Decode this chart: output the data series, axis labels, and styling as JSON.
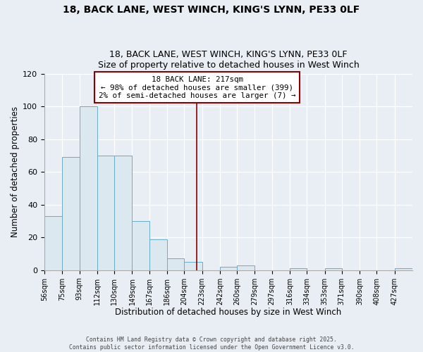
{
  "title1": "18, BACK LANE, WEST WINCH, KING'S LYNN, PE33 0LF",
  "title2": "Size of property relative to detached houses in West Winch",
  "xlabel": "Distribution of detached houses by size in West Winch",
  "ylabel": "Number of detached properties",
  "bar_color": "#dce8f0",
  "bar_edge_color": "#6aabcc",
  "bin_labels": [
    "56sqm",
    "75sqm",
    "93sqm",
    "112sqm",
    "130sqm",
    "149sqm",
    "167sqm",
    "186sqm",
    "204sqm",
    "223sqm",
    "242sqm",
    "260sqm",
    "279sqm",
    "297sqm",
    "316sqm",
    "334sqm",
    "353sqm",
    "371sqm",
    "390sqm",
    "408sqm",
    "427sqm"
  ],
  "bar_heights": [
    33,
    69,
    100,
    70,
    70,
    30,
    19,
    7,
    5,
    0,
    2,
    3,
    0,
    0,
    1,
    0,
    1,
    0,
    0,
    0,
    1
  ],
  "bin_edges": [
    56,
    75,
    93,
    112,
    130,
    149,
    167,
    186,
    204,
    223,
    242,
    260,
    279,
    297,
    316,
    334,
    353,
    371,
    390,
    408,
    427,
    446
  ],
  "ylim": [
    0,
    120
  ],
  "yticks": [
    0,
    20,
    40,
    60,
    80,
    100,
    120
  ],
  "property_line_x": 217,
  "property_line_color": "#8b0000",
  "annotation_text_line1": "18 BACK LANE: 217sqm",
  "annotation_text_line2": "← 98% of detached houses are smaller (399)",
  "annotation_text_line3": "2% of semi-detached houses are larger (7) →",
  "footer1": "Contains HM Land Registry data © Crown copyright and database right 2025.",
  "footer2": "Contains public sector information licensed under the Open Government Licence v3.0.",
  "background_color": "#e8eef4",
  "plot_bg_color": "#e8eef4",
  "grid_color": "#ffffff"
}
